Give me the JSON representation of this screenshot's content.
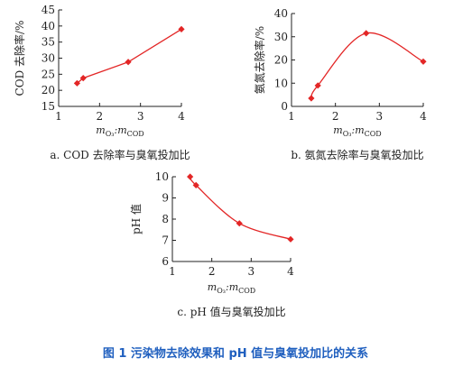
{
  "figure_caption": "图 1    污染物去除效果和 pH 值与臭氧投加比的关系",
  "colors": {
    "series": "#e32626",
    "axis": "#222222",
    "caption": "#1f5fbf"
  },
  "chart_data": [
    {
      "type": "scatter",
      "caption": "a. COD 去除率与臭氧投加比",
      "ylabel": "COD 去除率/%",
      "xlabel": {
        "var_main": "m",
        "sub1": "O₃",
        "sep": ":m",
        "sub2": "COD"
      },
      "xlim": [
        1,
        4
      ],
      "ylim": [
        15,
        45
      ],
      "xticks": [
        "1",
        "2",
        "3",
        "4"
      ],
      "yticks": [
        "15",
        "20",
        "25",
        "30",
        "35",
        "40",
        "45"
      ],
      "x": [
        1.45,
        1.6,
        2.7,
        4.0
      ],
      "y": [
        22.2,
        23.8,
        28.8,
        39.0
      ],
      "fit": "line"
    },
    {
      "type": "scatter",
      "caption": "b. 氨氮去除率与臭氧投加比",
      "ylabel": "氨氮去除率/%",
      "xlabel": {
        "var_main": "m",
        "sub1": "O₃",
        "sep": ":m",
        "sub2": "COD"
      },
      "xlim": [
        1,
        4
      ],
      "ylim": [
        0,
        40
      ],
      "xticks": [
        "1",
        "2",
        "3",
        "4"
      ],
      "yticks": [
        "0",
        "10",
        "20",
        "30",
        "40"
      ],
      "x": [
        1.45,
        1.6,
        2.7,
        4.0
      ],
      "y": [
        3.5,
        9.0,
        31.5,
        19.3
      ],
      "fit": "curve"
    },
    {
      "type": "scatter",
      "caption": "c. pH 值与臭氧投加比",
      "ylabel": "pH 值",
      "xlabel": {
        "var_main": "m",
        "sub1": "O₃",
        "sep": ":m",
        "sub2": "COD"
      },
      "xlim": [
        1,
        4
      ],
      "ylim": [
        6,
        10
      ],
      "xticks": [
        "1",
        "2",
        "3",
        "4"
      ],
      "yticks": [
        "6",
        "7",
        "8",
        "9",
        "10"
      ],
      "x": [
        1.45,
        1.6,
        2.7,
        4.0
      ],
      "y": [
        10.0,
        9.6,
        7.8,
        7.05
      ],
      "fit": "curve"
    }
  ]
}
